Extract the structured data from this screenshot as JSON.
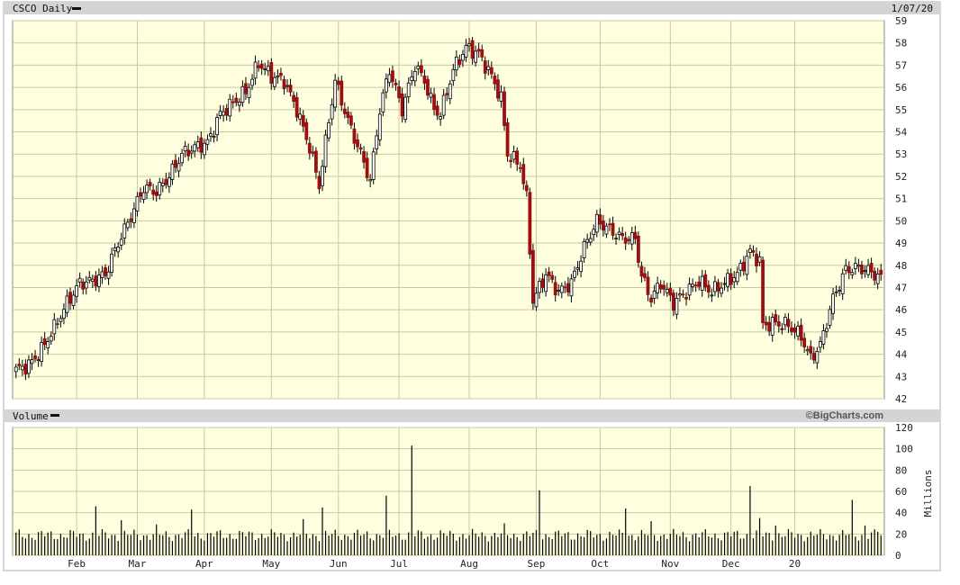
{
  "header": {
    "title": "CSCO Daily",
    "date": "1/07/20"
  },
  "volume_panel": {
    "title": "Volume",
    "copyright": "©BigCharts.com",
    "unit_label": "Millions"
  },
  "colors": {
    "plot_bg": "#ffffe0",
    "grid": "#c8c8a0",
    "up": "#ffffff",
    "down": "#9b1010",
    "bar": "#000000",
    "header_bg": "#d0d0d0"
  },
  "chart_data": [
    {
      "type": "candlestick",
      "title": "CSCO Daily",
      "ylim": [
        42,
        59
      ],
      "yticks": [
        42,
        43,
        44,
        45,
        46,
        47,
        48,
        49,
        50,
        51,
        52,
        53,
        54,
        55,
        56,
        57,
        58,
        59
      ],
      "x_tick_labels": [
        "Feb",
        "Mar",
        "Apr",
        "May",
        "Jun",
        "Jul",
        "Aug",
        "Sep",
        "Oct",
        "Nov",
        "Dec",
        "20"
      ],
      "grid": true,
      "close_anchors": [
        [
          0,
          43.3
        ],
        [
          4,
          43.5
        ],
        [
          8,
          44.2
        ],
        [
          12,
          45.2
        ],
        [
          16,
          46.3
        ],
        [
          20,
          47.2
        ],
        [
          24,
          47.3
        ],
        [
          28,
          47.6
        ],
        [
          32,
          49.0
        ],
        [
          36,
          50.2
        ],
        [
          40,
          51.5
        ],
        [
          44,
          51.3
        ],
        [
          48,
          52.0
        ],
        [
          52,
          53.0
        ],
        [
          56,
          53.3
        ],
        [
          60,
          53.5
        ],
        [
          64,
          54.8
        ],
        [
          68,
          55.3
        ],
        [
          72,
          55.8
        ],
        [
          76,
          57.1
        ],
        [
          80,
          56.5
        ],
        [
          84,
          56.3
        ],
        [
          88,
          55.0
        ],
        [
          92,
          53.3
        ],
        [
          95,
          51.6
        ],
        [
          98,
          54.5
        ],
        [
          100,
          56.3
        ],
        [
          104,
          54.5
        ],
        [
          108,
          53.0
        ],
        [
          111,
          51.8
        ],
        [
          114,
          55.0
        ],
        [
          117,
          56.8
        ],
        [
          121,
          55.0
        ],
        [
          125,
          57.0
        ],
        [
          128,
          56.3
        ],
        [
          131,
          55.0
        ],
        [
          133,
          54.8
        ],
        [
          137,
          56.8
        ],
        [
          141,
          57.8
        ],
        [
          145,
          57.5
        ],
        [
          149,
          56.5
        ],
        [
          152,
          55.5
        ],
        [
          154,
          53.0
        ],
        [
          158,
          52.5
        ],
        [
          160,
          51.0
        ],
        [
          162,
          46.4
        ],
        [
          166,
          47.6
        ],
        [
          170,
          46.8
        ],
        [
          174,
          47.2
        ],
        [
          178,
          48.8
        ],
        [
          182,
          50.0
        ],
        [
          186,
          49.6
        ],
        [
          190,
          49.2
        ],
        [
          194,
          49.2
        ],
        [
          196,
          47.5
        ],
        [
          199,
          46.5
        ],
        [
          202,
          47.2
        ],
        [
          206,
          46.3
        ],
        [
          210,
          46.8
        ],
        [
          214,
          47.3
        ],
        [
          218,
          46.8
        ],
        [
          222,
          47.2
        ],
        [
          226,
          47.6
        ],
        [
          230,
          48.6
        ],
        [
          233,
          48.2
        ],
        [
          234,
          45.3
        ],
        [
          238,
          45.4
        ],
        [
          242,
          45.3
        ],
        [
          246,
          44.8
        ],
        [
          249,
          43.8
        ],
        [
          252,
          44.4
        ],
        [
          256,
          46.5
        ],
        [
          260,
          47.8
        ],
        [
          264,
          47.9
        ],
        [
          268,
          47.7
        ],
        [
          271,
          47.4
        ]
      ],
      "month_starts": [
        19,
        38,
        59,
        80,
        101,
        120,
        142,
        163,
        183,
        205,
        224,
        244
      ]
    },
    {
      "type": "bar",
      "title": "Volume",
      "ylabel": "Millions",
      "ylim": [
        0,
        120
      ],
      "yticks": [
        0,
        20,
        40,
        60,
        80,
        100,
        120
      ],
      "grid": true,
      "baseline_millions": 19,
      "spikes": [
        [
          25,
          46
        ],
        [
          33,
          33
        ],
        [
          44,
          29
        ],
        [
          55,
          43
        ],
        [
          90,
          34
        ],
        [
          96,
          45
        ],
        [
          116,
          56
        ],
        [
          124,
          103
        ],
        [
          153,
          30
        ],
        [
          164,
          61
        ],
        [
          191,
          44
        ],
        [
          199,
          32
        ],
        [
          230,
          65
        ],
        [
          233,
          35
        ],
        [
          238,
          28
        ],
        [
          262,
          52
        ],
        [
          266,
          28
        ],
        [
          270,
          22
        ]
      ]
    }
  ]
}
